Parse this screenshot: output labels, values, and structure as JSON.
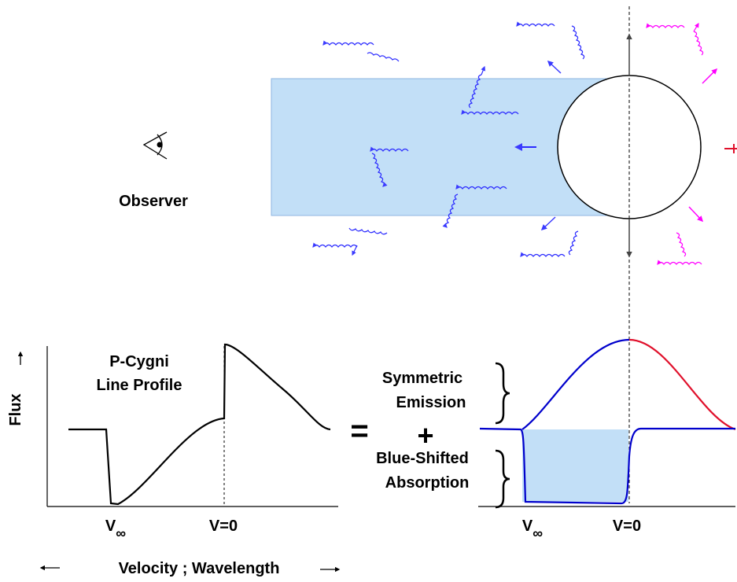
{
  "labels": {
    "observer": "Observer",
    "profile_title_line1": "P-Cygni",
    "profile_title_line2": "Line Profile",
    "flux_axis": "Flux",
    "v_inf_symbol": "V",
    "v_inf_subscript": "∞",
    "v_zero": "V=0",
    "equals": "=",
    "plus": "+",
    "symmetric_line1": "Symmetric",
    "symmetric_line2": "Emission",
    "absorption_line1": "Blue-Shifted",
    "absorption_line2": "Absorption",
    "velocity_axis": "Velocity ; Wavelength"
  },
  "colors": {
    "absorption_fill": "#c2dff7",
    "blue_shifted": "#0000cc",
    "blue_photons": "#3a3aff",
    "red_shifted": "#e0102b",
    "magenta_photons": "#ff00ff",
    "neutral": "#444444"
  },
  "icons": {
    "observer": "eye-icon"
  }
}
